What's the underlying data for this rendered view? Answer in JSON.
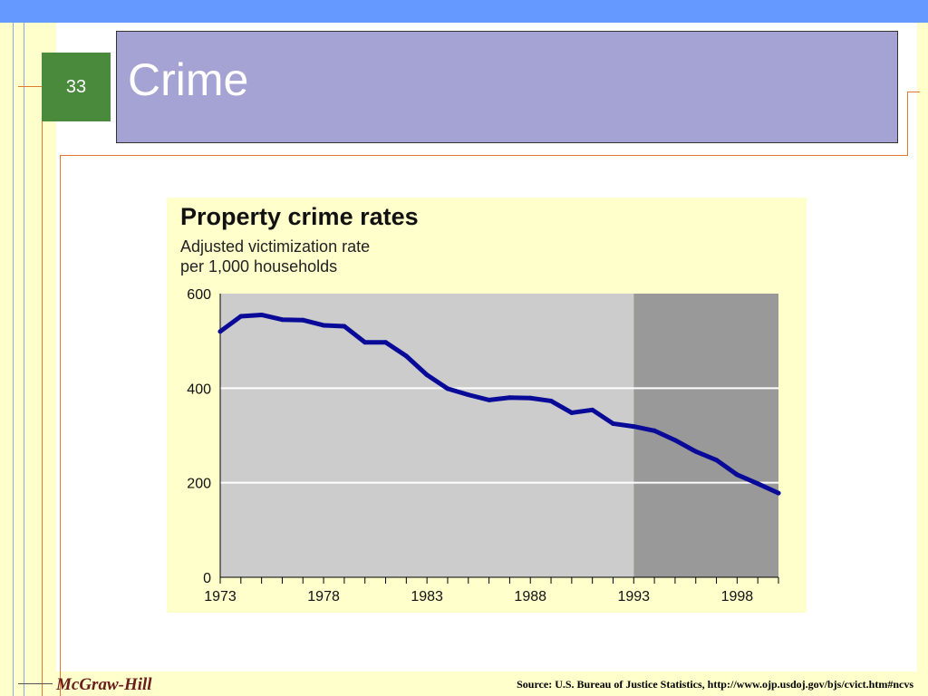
{
  "slide": {
    "number": "33",
    "title": "Crime"
  },
  "footer": {
    "brand": "McGraw-Hill",
    "source": "Source: U.S. Bureau of Justice Statistics, http://www.ojp.usdoj.gov/bjs/cvict.htm#ncvs"
  },
  "colors": {
    "top_bar": "#6699ff",
    "strip": "#ffffcc",
    "title_box": "#a5a3d3",
    "slide_number_box": "#4a8a3c",
    "accent_line": "#e07a33",
    "plot_light": "#cccccc",
    "plot_dark": "#999999",
    "series_line": "#0a0a99"
  },
  "chart_data": {
    "type": "line",
    "title": "Property crime rates",
    "subtitle_lines": [
      "Adjusted victimization rate",
      "per 1,000 households"
    ],
    "x_ticks": [
      "1973",
      "1978",
      "1983",
      "1988",
      "1993",
      "1998"
    ],
    "y_ticks": [
      "0",
      "200",
      "400",
      "600"
    ],
    "xlim": [
      1973,
      2000
    ],
    "ylim": [
      0,
      600
    ],
    "grid": "horizontal",
    "shaded_region_start": 1993,
    "series": [
      {
        "x": [
          1973,
          1974,
          1975,
          1976,
          1977,
          1978,
          1979,
          1980,
          1981,
          1982,
          1983,
          1984,
          1985,
          1986,
          1987,
          1988,
          1989,
          1990,
          1991,
          1992,
          1993,
          1994,
          1995,
          1996,
          1997,
          1998,
          1999,
          2000
        ],
        "values": [
          520,
          552,
          555,
          545,
          544,
          533,
          531,
          497,
          497,
          468,
          428,
          399,
          386,
          375,
          380,
          379,
          373,
          348,
          354,
          325,
          319,
          310,
          290,
          266,
          248,
          217,
          198,
          178
        ]
      }
    ]
  }
}
